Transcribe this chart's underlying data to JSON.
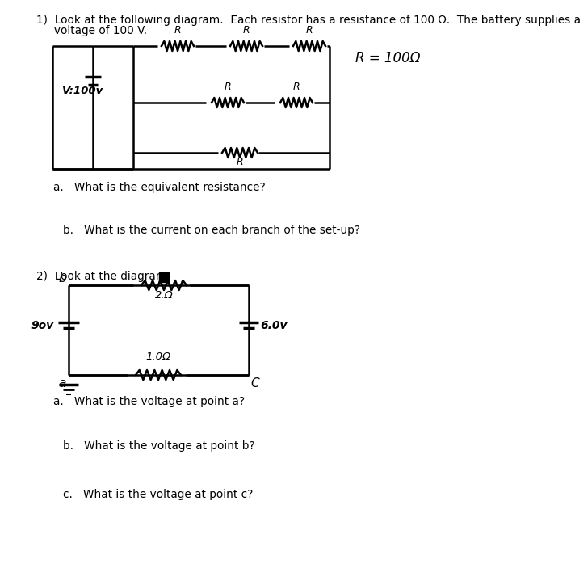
{
  "bg_color": "#ffffff",
  "q1_header": "1)  Look at the following diagram.  Each resistor has a resistance of 100 Ω.  The battery supplies a",
  "q1_header2": "     voltage of 100 V.",
  "q1_note": "R = 100Ω",
  "q1a": "a.   What is the equivalent resistance?",
  "q1b": "b.   What is the current on each branch of the set-up?",
  "q2_header": "2)  Look at the diagram.",
  "q2a": "a.   What is the voltage at point a?",
  "q2b": "b.   What is the voltage at point b?",
  "q2c": "c.   What is the voltage at point c?",
  "font_size_main": 9.8,
  "lw": 1.8
}
